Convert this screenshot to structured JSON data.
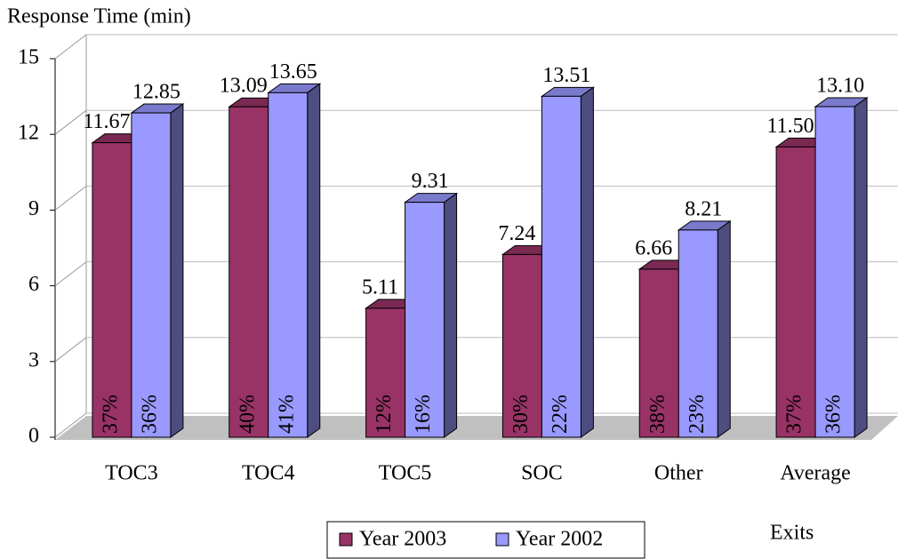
{
  "chart_data": {
    "type": "bar3d",
    "y_axis_label": "Response Time (min)",
    "x_axis_label": "Exits",
    "categories": [
      "TOC3",
      "TOC4",
      "TOC5",
      "SOC",
      "Other",
      "Average"
    ],
    "series": [
      {
        "name": "Year 2003",
        "color": "#993366",
        "values": [
          11.67,
          13.09,
          5.11,
          7.24,
          6.66,
          11.5
        ],
        "value_labels": [
          "11.67",
          "13.09",
          "5.11",
          "7.24",
          "6.66",
          "11.50"
        ],
        "percent_labels": [
          "37%",
          "40%",
          "12%",
          "30%",
          "38%",
          "37%"
        ]
      },
      {
        "name": "Year 2002",
        "color": "#9999ff",
        "values": [
          12.85,
          13.65,
          9.31,
          13.51,
          8.21,
          13.1
        ],
        "value_labels": [
          "12.85",
          "13.65",
          "9.31",
          "13.51",
          "8.21",
          "13.10"
        ],
        "percent_labels": [
          "36%",
          "41%",
          "16%",
          "22%",
          "23%",
          "36%"
        ]
      }
    ],
    "ylim": [
      0,
      15
    ],
    "yticks": [
      0,
      3,
      6,
      9,
      12,
      15
    ],
    "grid": true
  }
}
